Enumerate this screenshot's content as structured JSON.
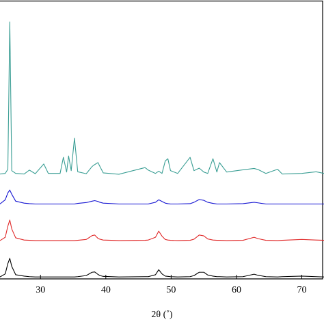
{
  "chart_data": {
    "type": "line",
    "x_label": "2θ (˚)",
    "x": [
      23.8,
      24.6,
      25.0,
      25.3,
      25.6,
      26.2,
      27.5,
      28.3,
      29.2,
      30.5,
      31.2,
      33.0,
      33.5,
      34.0,
      34.3,
      34.7,
      35.2,
      35.7,
      37.0,
      37.9,
      38.3,
      38.8,
      39.1,
      39.6,
      42.0,
      46.0,
      46.5,
      47.6,
      48.1,
      48.6,
      49.1,
      49.5,
      49.9,
      51.0,
      52.9,
      53.5,
      54.3,
      55.0,
      55.6,
      56.4,
      57.0,
      57.4,
      58.5,
      61.0,
      62.7,
      63.3,
      64.5,
      66.3,
      67.0,
      70.0,
      72.2,
      73.4
    ],
    "series": [
      {
        "color": "#3a9e94",
        "values": [
          37.8,
          38.0,
          39.5,
          92.6,
          39.0,
          38.0,
          37.8,
          39.2,
          37.9,
          41.4,
          38.0,
          38.0,
          43.8,
          38.5,
          44.3,
          39.0,
          50.7,
          38.6,
          37.9,
          40.5,
          41.2,
          41.9,
          40.5,
          38.2,
          37.7,
          40.1,
          39.2,
          38.0,
          38.8,
          38.0,
          42.5,
          43.3,
          39.0,
          38.0,
          43.8,
          39.0,
          39.9,
          38.5,
          38.0,
          43.3,
          38.5,
          41.9,
          38.5,
          39.3,
          39.8,
          39.4,
          38.0,
          39.5,
          37.8,
          38.0,
          38.6,
          38.0
        ]
      },
      {
        "color": "#1414d2",
        "values": [
          27.0,
          28.5,
          31.0,
          32.0,
          30.5,
          28.0,
          27.3,
          27.1,
          27.0,
          27.0,
          27.0,
          27.0,
          27.0,
          27.0,
          27.0,
          27.0,
          27.0,
          27.2,
          27.5,
          28.0,
          28.2,
          27.9,
          27.6,
          27.3,
          27.0,
          27.0,
          27.0,
          27.6,
          28.5,
          27.9,
          27.3,
          27.1,
          27.0,
          27.0,
          27.1,
          27.6,
          28.6,
          28.3,
          27.6,
          27.2,
          27.0,
          27.0,
          27.0,
          27.1,
          27.6,
          27.4,
          27.0,
          27.0,
          27.0,
          27.0,
          27.0,
          27.0
        ]
      },
      {
        "color": "#e02828",
        "values": [
          13.8,
          15.0,
          19.0,
          21.2,
          18.0,
          14.8,
          14.0,
          13.9,
          13.8,
          13.8,
          13.8,
          13.8,
          13.8,
          13.8,
          13.8,
          13.8,
          13.8,
          13.9,
          14.2,
          15.6,
          15.8,
          14.6,
          14.3,
          14.0,
          13.8,
          13.9,
          14.0,
          15.0,
          17.2,
          15.4,
          14.2,
          14.0,
          13.9,
          13.8,
          13.9,
          14.3,
          15.8,
          15.5,
          14.4,
          14.0,
          13.9,
          13.9,
          13.8,
          13.9,
          15.0,
          14.5,
          13.9,
          13.8,
          13.9,
          14.2,
          14.0,
          13.9
        ]
      },
      {
        "color": "#000000",
        "values": [
          0.7,
          1.8,
          5.5,
          7.4,
          4.5,
          1.5,
          1.0,
          0.8,
          0.7,
          0.7,
          0.7,
          0.7,
          0.7,
          0.7,
          0.7,
          0.7,
          0.7,
          0.8,
          1.2,
          2.4,
          2.5,
          1.6,
          1.2,
          0.9,
          0.7,
          0.8,
          0.8,
          1.5,
          3.3,
          1.8,
          1.0,
          0.9,
          0.8,
          0.7,
          0.8,
          1.2,
          2.4,
          2.4,
          1.4,
          1.0,
          0.8,
          0.8,
          0.7,
          0.8,
          1.7,
          1.3,
          0.8,
          0.7,
          0.8,
          1.0,
          0.8,
          0.7
        ]
      }
    ],
    "xlim": [
      23.8,
      73.4
    ],
    "xticks": [
      30,
      40,
      50,
      60,
      70
    ],
    "ylim": [
      0,
      100
    ]
  }
}
